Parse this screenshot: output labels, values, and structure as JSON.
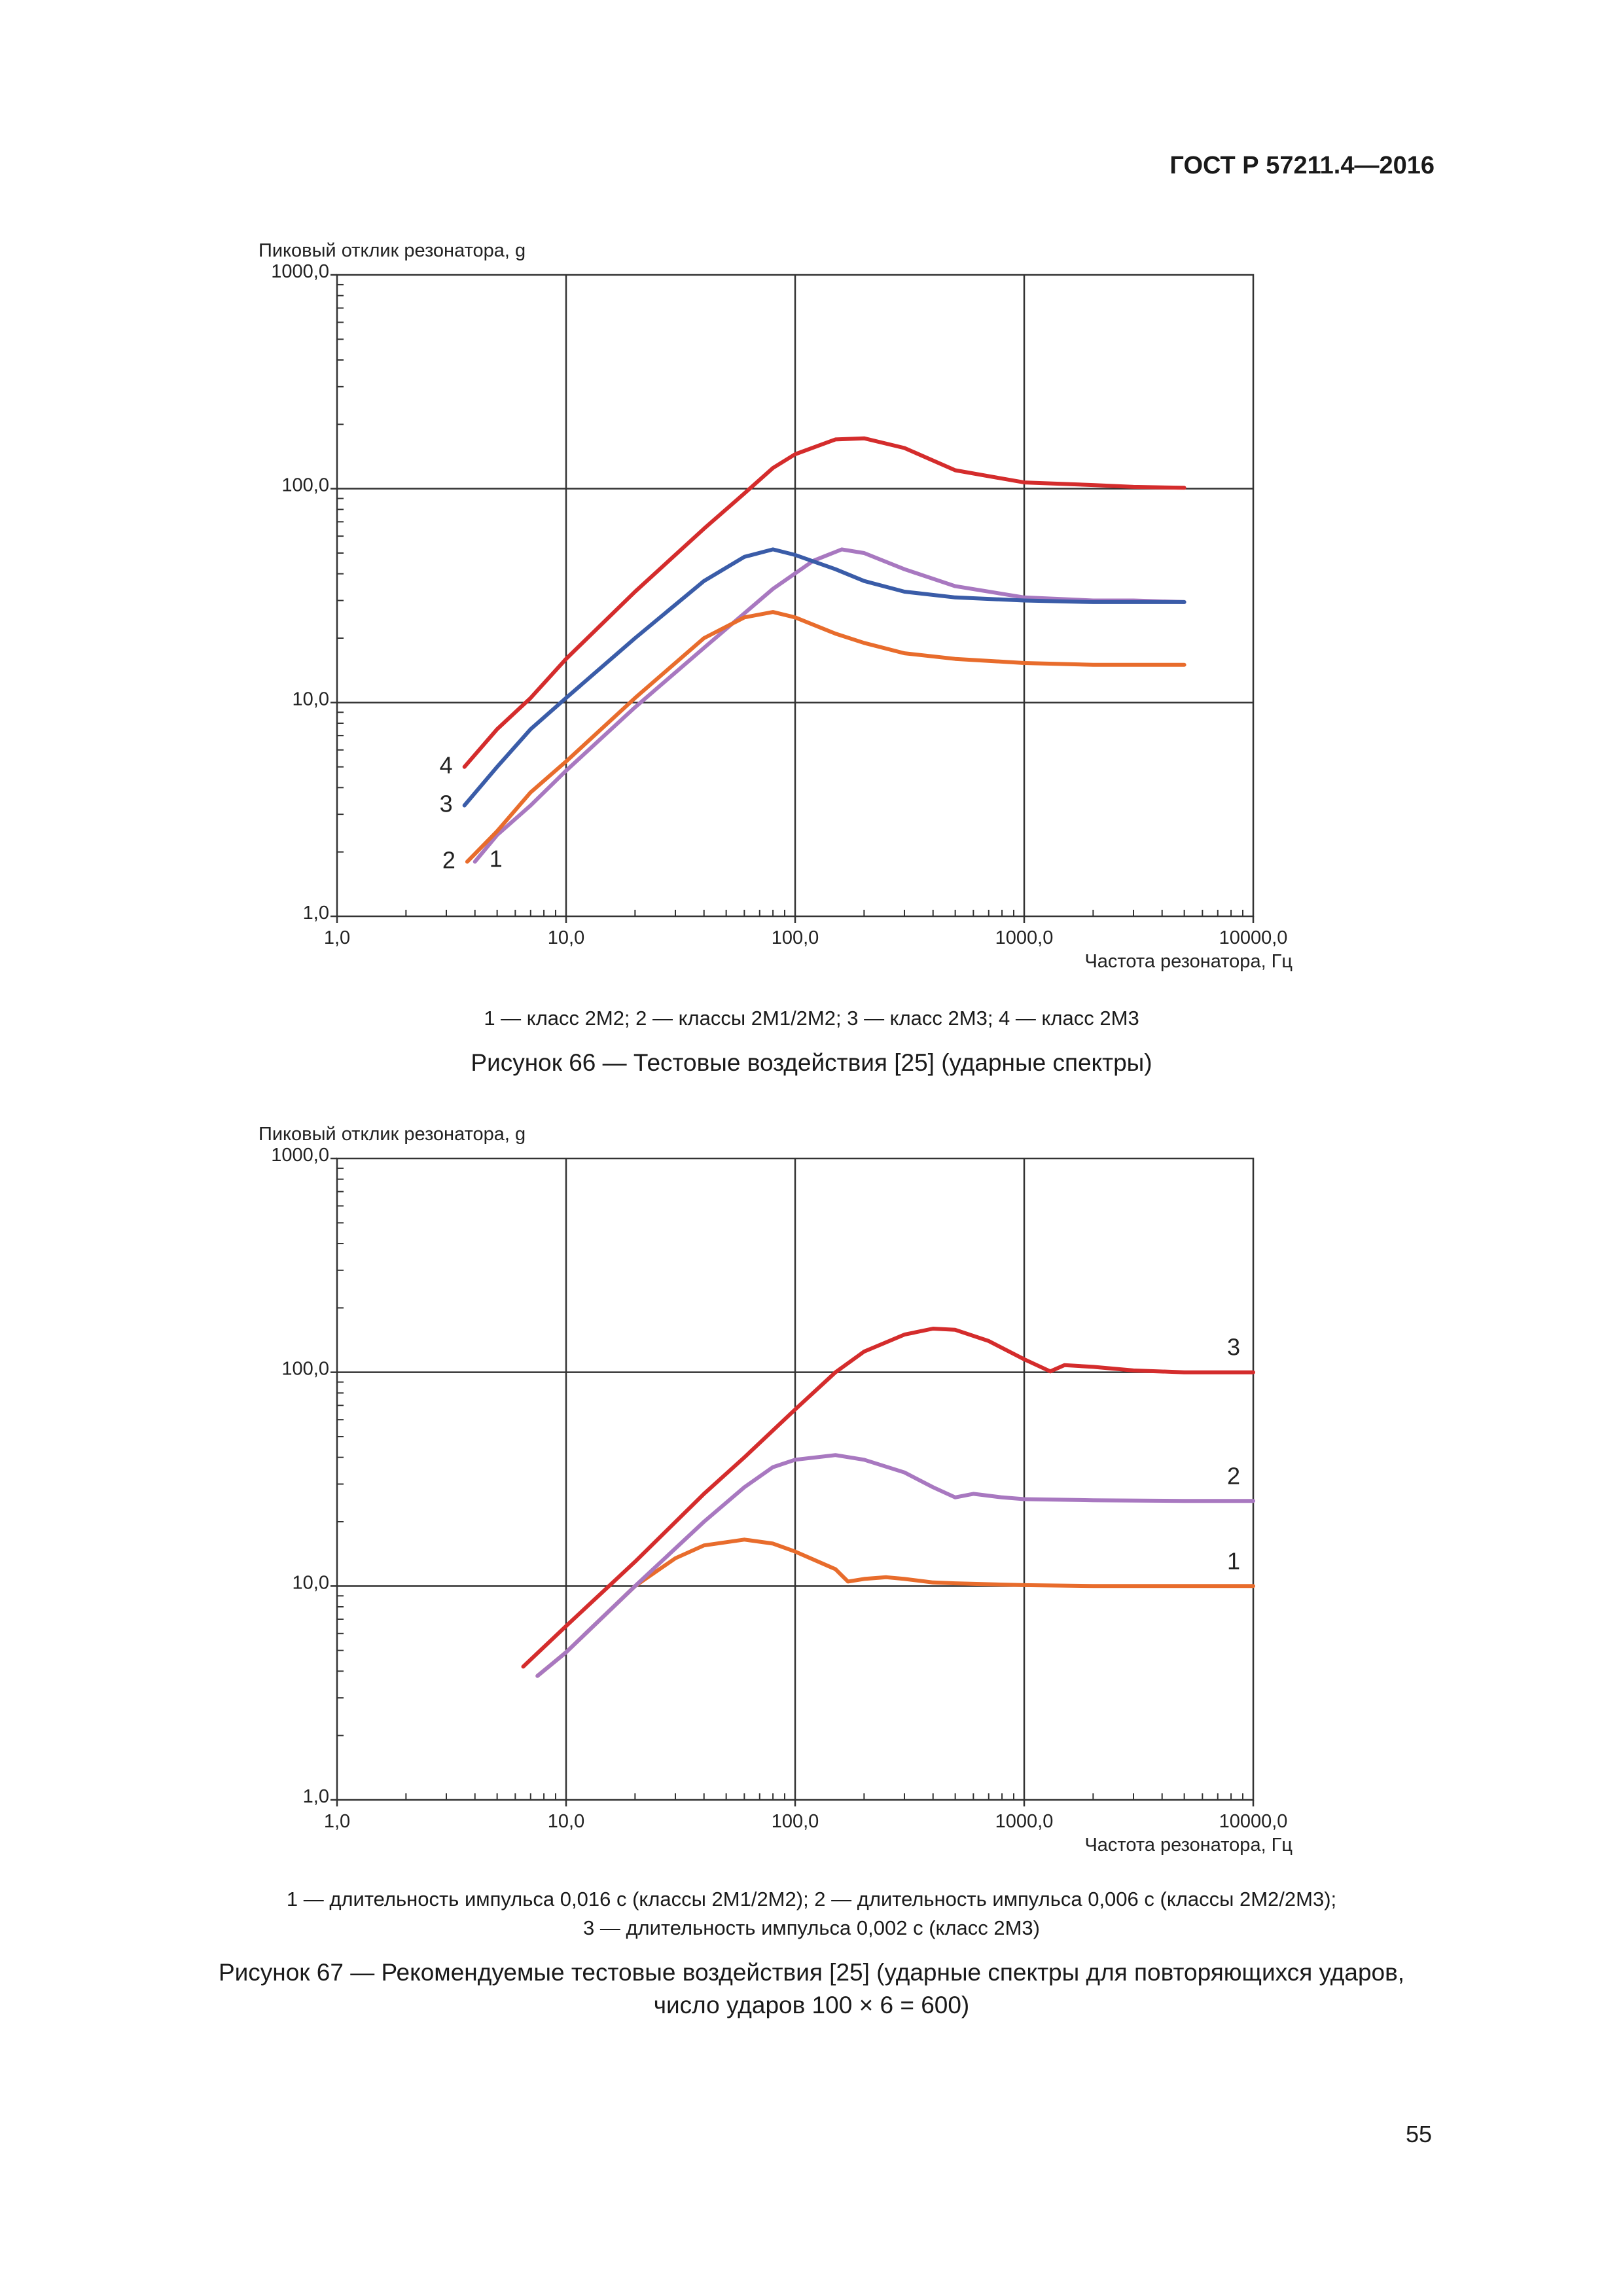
{
  "header": {
    "doc_code": "ГОСТ Р 57211.4—2016"
  },
  "page_number": "55",
  "figure66": {
    "legend_text": "1 — класс 2М2; 2 — классы 2М1/2М2; 3 — класс 2М3; 4 — класс 2М3",
    "caption": "Рисунок 66 — Тестовые воздействия [25] (ударные спектры)"
  },
  "figure67": {
    "legend_line1": "1 — длительность импульса 0,016 с (классы 2М1/2М2); 2 — длительность импульса 0,006 с (классы 2М2/2М3);",
    "legend_line2": "3 — длительность импульса 0,002 с (класс 2М3)",
    "caption_line1": "Рисунок 67 — Рекомендуемые тестовые воздействия [25] (ударные спектры для повторяющихся ударов,",
    "caption_line2": "число ударов 100 × 6 = 600)"
  },
  "chart_data": [
    {
      "type": "line",
      "ylabel": "Пиковый отклик резонатора, g",
      "xlabel": "Частота резонатора, Гц",
      "x_scale": "log",
      "y_scale": "log",
      "xlim": [
        1,
        10000
      ],
      "ylim": [
        1,
        1000
      ],
      "x_ticks": [
        1,
        10,
        100,
        1000,
        10000
      ],
      "x_tick_labels": [
        "1,0",
        "10,0",
        "100,0",
        "1000,0",
        "10000,0"
      ],
      "y_ticks": [
        1,
        10,
        100,
        1000
      ],
      "y_tick_labels": [
        "1,0",
        "10,0",
        "100,0",
        "1000,0"
      ],
      "grid": true,
      "series": [
        {
          "name": "1",
          "color": "#a878c0",
          "label_side": "right",
          "x": [
            4,
            5,
            7,
            10,
            20,
            40,
            80,
            120,
            160,
            200,
            300,
            500,
            1000,
            2000,
            3000,
            5000
          ],
          "y": [
            1.8,
            2.4,
            3.3,
            4.8,
            9.5,
            18,
            34,
            46,
            52,
            50,
            42,
            35,
            31,
            30,
            30,
            29.5
          ]
        },
        {
          "name": "2",
          "color": "#e86c2c",
          "label_side": "left",
          "x": [
            3.7,
            5,
            7,
            10,
            20,
            40,
            60,
            80,
            100,
            150,
            200,
            300,
            500,
            1000,
            2000,
            5000
          ],
          "y": [
            1.8,
            2.5,
            3.8,
            5.3,
            10.5,
            20,
            25,
            26.5,
            25,
            21,
            19,
            17,
            16,
            15.3,
            15,
            15
          ]
        },
        {
          "name": "3",
          "color": "#3a5ca8",
          "label_side": "left",
          "x": [
            3.6,
            5,
            7,
            10,
            20,
            40,
            60,
            80,
            100,
            150,
            200,
            300,
            500,
            1000,
            2000,
            5000
          ],
          "y": [
            3.3,
            5,
            7.5,
            10.5,
            20,
            37,
            48,
            52,
            49,
            42,
            37,
            33,
            31,
            30,
            29.5,
            29.5
          ]
        },
        {
          "name": "4",
          "color": "#d42c2c",
          "label_side": "left",
          "x": [
            3.6,
            5,
            7,
            10,
            20,
            40,
            60,
            80,
            100,
            150,
            200,
            300,
            500,
            1000,
            2000,
            3000,
            5000
          ],
          "y": [
            5,
            7.5,
            10.5,
            16,
            33,
            65,
            95,
            125,
            145,
            170,
            172,
            155,
            122,
            107,
            104,
            102,
            101
          ]
        }
      ]
    },
    {
      "type": "line",
      "ylabel": "Пиковый отклик резонатора, g",
      "xlabel": "Частота резонатора, Гц",
      "x_scale": "log",
      "y_scale": "log",
      "xlim": [
        1,
        10000
      ],
      "ylim": [
        1,
        1000
      ],
      "x_ticks": [
        1,
        10,
        100,
        1000,
        10000
      ],
      "x_tick_labels": [
        "1,0",
        "10,0",
        "100,0",
        "1000,0",
        "10000,0"
      ],
      "y_ticks": [
        1,
        10,
        100,
        1000
      ],
      "y_tick_labels": [
        "1,0",
        "10,0",
        "100,0",
        "1000,0"
      ],
      "grid": true,
      "series": [
        {
          "name": "1",
          "color": "#e86c2c",
          "label_side": "end",
          "x": [
            7.5,
            10,
            20,
            30,
            40,
            60,
            80,
            100,
            150,
            170,
            200,
            250,
            300,
            400,
            500,
            700,
            1000,
            2000,
            5000,
            10000
          ],
          "y": [
            3.8,
            4.9,
            10,
            13.5,
            15.5,
            16.5,
            15.8,
            14.5,
            12,
            10.5,
            10.8,
            11,
            10.8,
            10.4,
            10.3,
            10.2,
            10.1,
            10,
            10,
            10
          ]
        },
        {
          "name": "2",
          "color": "#a878c0",
          "label_side": "end",
          "x": [
            7.5,
            10,
            20,
            40,
            60,
            80,
            100,
            150,
            200,
            300,
            400,
            500,
            600,
            800,
            1000,
            2000,
            5000,
            10000
          ],
          "y": [
            3.8,
            4.9,
            10,
            20,
            29,
            36,
            39,
            41,
            39,
            34,
            29,
            26,
            27,
            26,
            25.5,
            25.2,
            25,
            25
          ]
        },
        {
          "name": "3",
          "color": "#d42c2c",
          "label_side": "end",
          "x": [
            6.5,
            10,
            20,
            40,
            60,
            100,
            150,
            200,
            300,
            400,
            500,
            700,
            1000,
            1300,
            1500,
            2000,
            3000,
            5000,
            10000
          ],
          "y": [
            4.2,
            6.5,
            13,
            27,
            40,
            67,
            100,
            125,
            150,
            160,
            158,
            140,
            115,
            101,
            108,
            106,
            102,
            100,
            100
          ]
        }
      ]
    }
  ]
}
